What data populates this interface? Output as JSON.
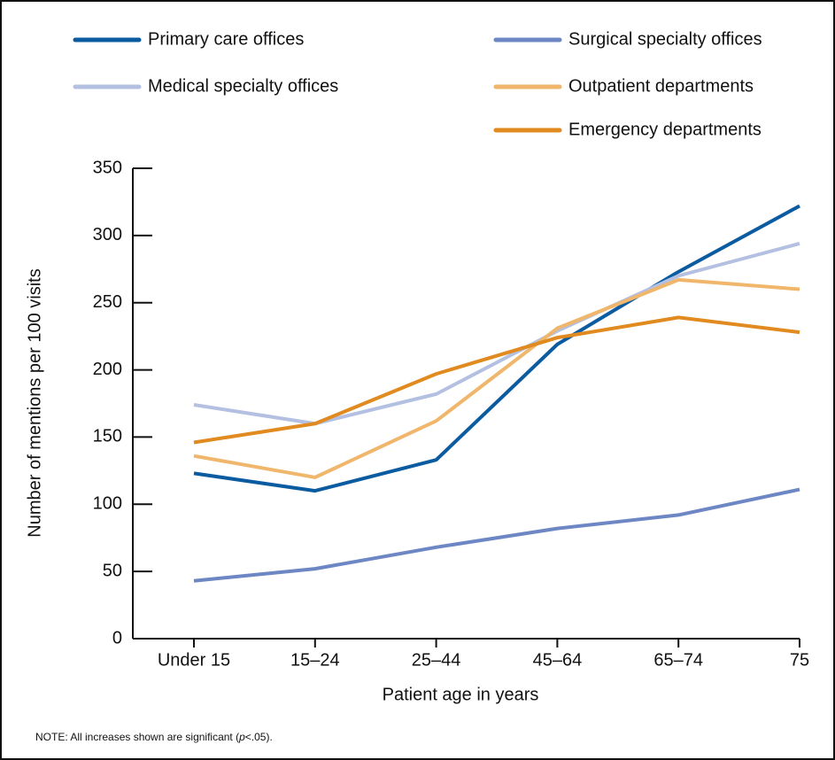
{
  "chart_data": {
    "type": "line",
    "x_label": "Patient age in years",
    "y_label": "Number of mentions per 100 visits",
    "note": [
      "NOTE: All increases shown are significant (",
      "p",
      "<.05)."
    ],
    "categories": [
      "Under 15",
      "15–24",
      "25–44",
      "45–64",
      "65–74",
      "75"
    ],
    "series": [
      {
        "name": "Primary care offices",
        "color": "#0b5ba1",
        "values": [
          123,
          110,
          133,
          219,
          273,
          322
        ]
      },
      {
        "name": "Surgical specialty offices",
        "color": "#6c87c3",
        "values": [
          43,
          52,
          68,
          82,
          92,
          111
        ]
      },
      {
        "name": "Medical specialty offices",
        "color": "#b4c0e1",
        "values": [
          174,
          160,
          182,
          229,
          270,
          294
        ]
      },
      {
        "name": "Outpatient departments",
        "color": "#f0b66b",
        "values": [
          136,
          120,
          162,
          231,
          267,
          260
        ]
      },
      {
        "name": "Emergency departments",
        "color": "#e08a1f",
        "values": [
          146,
          160,
          197,
          224,
          239,
          228
        ]
      }
    ],
    "ylim": [
      0,
      350
    ],
    "yticks": [
      0,
      50,
      100,
      150,
      200,
      250,
      300,
      350
    ]
  }
}
